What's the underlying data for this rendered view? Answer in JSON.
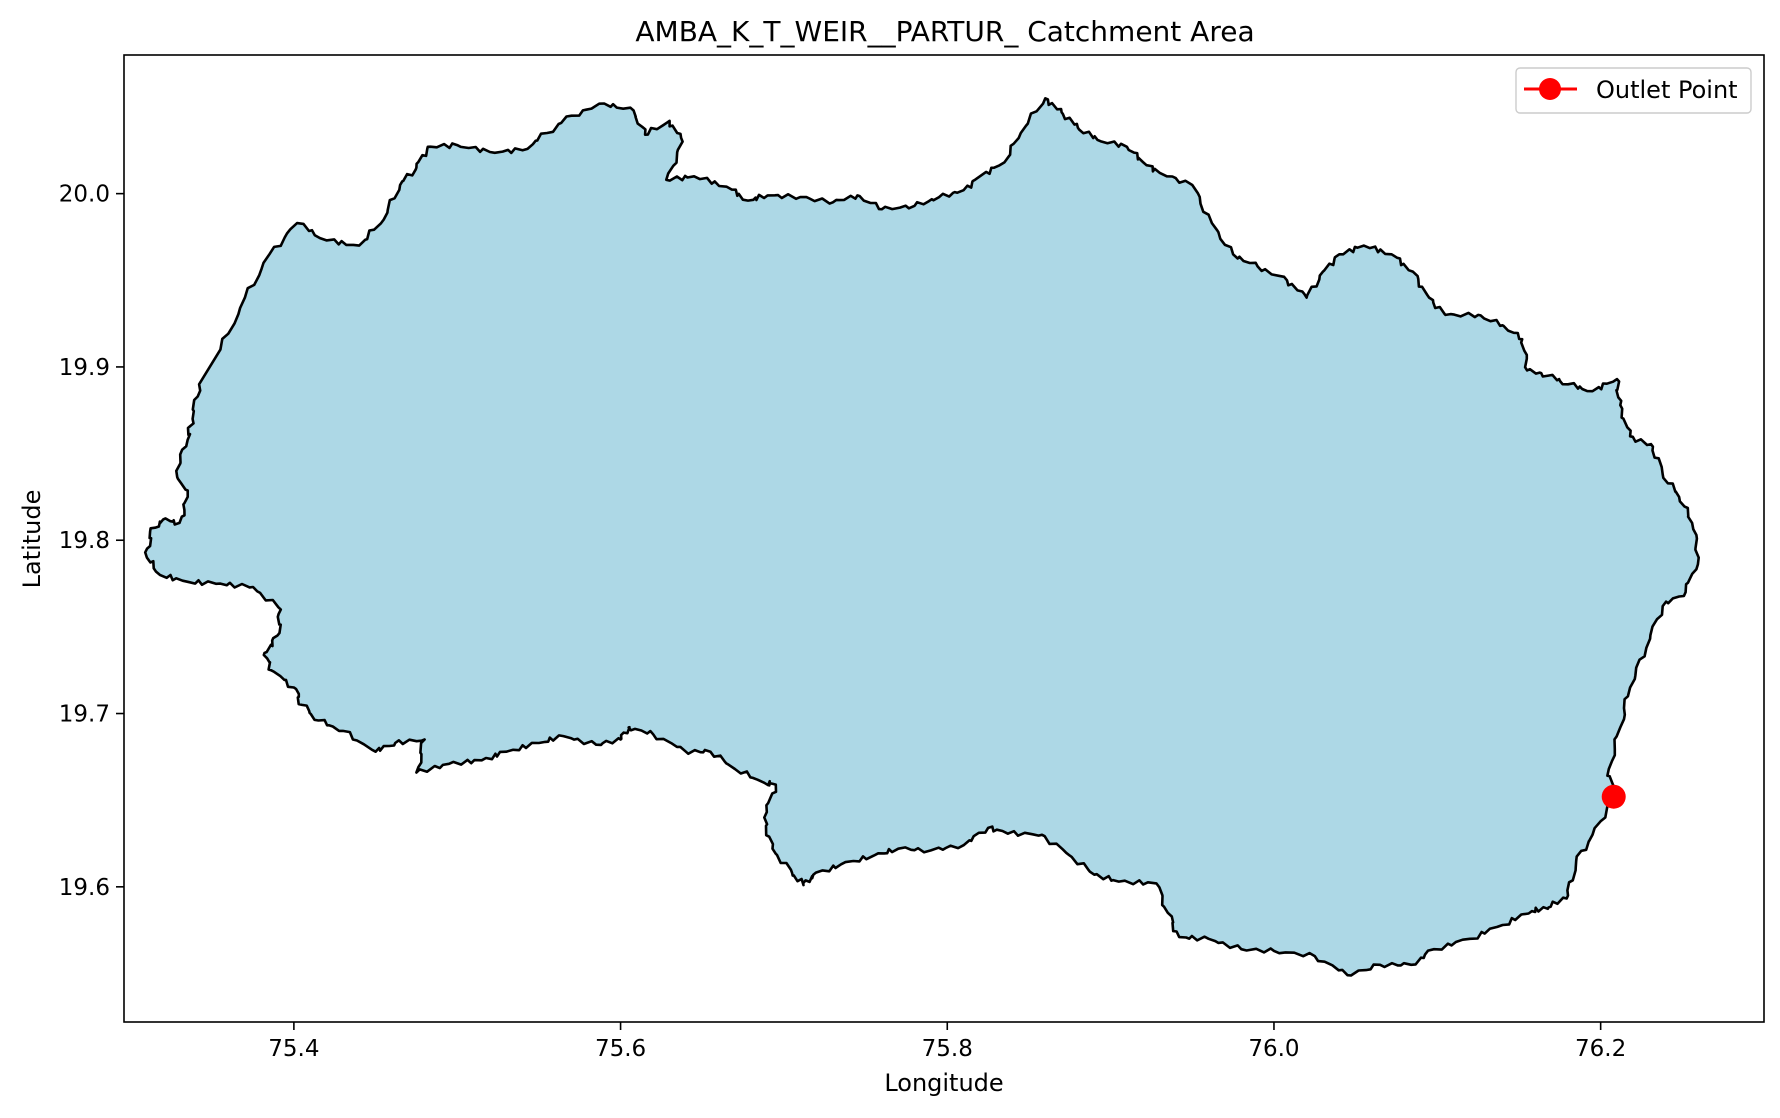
{
  "chart_data": {
    "type": "map",
    "title": "AMBA_K_T_WEIR__PARTUR_ Catchment Area",
    "xlabel": "Longitude",
    "ylabel": "Latitude",
    "xlim": [
      75.296,
      76.3
    ],
    "ylim": [
      19.522,
      20.08
    ],
    "x_ticks": [
      75.4,
      75.6,
      75.8,
      76.0,
      76.2
    ],
    "x_tick_labels": [
      "75.4",
      "75.6",
      "75.8",
      "76.0",
      "76.2"
    ],
    "y_ticks": [
      19.6,
      19.7,
      19.8,
      19.9,
      20.0
    ],
    "y_tick_labels": [
      "19.6",
      "19.7",
      "19.8",
      "19.9",
      "20.0"
    ],
    "grid": false,
    "legend": {
      "position": "top-right",
      "entries": [
        "Outlet Point"
      ]
    },
    "fill_color": "#add8e6",
    "edge_color": "#000000",
    "outlet_color": "#ff0000",
    "outlet_point": {
      "name": "Outlet Point",
      "lon": 76.208,
      "lat": 19.652
    },
    "catchment_boundary": [
      [
        75.355,
        19.91
      ],
      [
        75.37,
        19.94
      ],
      [
        75.385,
        19.965
      ],
      [
        75.402,
        19.983
      ],
      [
        75.42,
        19.973
      ],
      [
        75.44,
        19.97
      ],
      [
        75.455,
        19.985
      ],
      [
        75.465,
        20.005
      ],
      [
        75.475,
        20.015
      ],
      [
        75.482,
        20.027
      ],
      [
        75.5,
        20.028
      ],
      [
        75.52,
        20.024
      ],
      [
        75.54,
        20.025
      ],
      [
        75.555,
        20.035
      ],
      [
        75.57,
        20.045
      ],
      [
        75.59,
        20.052
      ],
      [
        75.608,
        20.048
      ],
      [
        75.615,
        20.034
      ],
      [
        75.63,
        20.042
      ],
      [
        75.638,
        20.03
      ],
      [
        75.628,
        20.008
      ],
      [
        75.645,
        20.01
      ],
      [
        75.665,
        20.004
      ],
      [
        75.678,
        19.996
      ],
      [
        75.69,
        19.999
      ],
      [
        75.71,
        19.998
      ],
      [
        75.73,
        19.995
      ],
      [
        75.745,
        19.999
      ],
      [
        75.76,
        19.991
      ],
      [
        75.78,
        19.993
      ],
      [
        75.795,
        19.998
      ],
      [
        75.81,
        20.002
      ],
      [
        75.82,
        20.01
      ],
      [
        75.835,
        20.018
      ],
      [
        75.845,
        20.035
      ],
      [
        75.86,
        20.055
      ],
      [
        75.87,
        20.047
      ],
      [
        75.88,
        20.038
      ],
      [
        75.892,
        20.031
      ],
      [
        75.91,
        20.027
      ],
      [
        75.92,
        20.018
      ],
      [
        75.93,
        20.012
      ],
      [
        75.95,
        20.005
      ],
      [
        75.962,
        19.983
      ],
      [
        75.975,
        19.965
      ],
      [
        75.99,
        19.958
      ],
      [
        76.008,
        19.95
      ],
      [
        76.02,
        19.94
      ],
      [
        76.03,
        19.955
      ],
      [
        76.04,
        19.965
      ],
      [
        76.055,
        19.97
      ],
      [
        76.072,
        19.965
      ],
      [
        76.085,
        19.955
      ],
      [
        76.095,
        19.94
      ],
      [
        76.105,
        19.93
      ],
      [
        76.125,
        19.93
      ],
      [
        76.14,
        19.924
      ],
      [
        76.152,
        19.916
      ],
      [
        76.155,
        19.898
      ],
      [
        76.168,
        19.895
      ],
      [
        76.18,
        19.89
      ],
      [
        76.195,
        19.886
      ],
      [
        76.21,
        19.893
      ],
      [
        76.212,
        19.878
      ],
      [
        76.218,
        19.86
      ],
      [
        76.232,
        19.854
      ],
      [
        76.238,
        19.838
      ],
      [
        76.248,
        19.825
      ],
      [
        76.256,
        19.81
      ],
      [
        76.26,
        19.79
      ],
      [
        76.252,
        19.77
      ],
      [
        76.238,
        19.762
      ],
      [
        76.228,
        19.738
      ],
      [
        76.218,
        19.715
      ],
      [
        76.212,
        19.692
      ],
      [
        76.205,
        19.668
      ],
      [
        76.208,
        19.652
      ],
      [
        76.195,
        19.63
      ],
      [
        76.185,
        19.615
      ],
      [
        76.18,
        19.595
      ],
      [
        76.168,
        19.588
      ],
      [
        76.158,
        19.586
      ],
      [
        76.14,
        19.578
      ],
      [
        76.12,
        19.57
      ],
      [
        76.098,
        19.564
      ],
      [
        76.084,
        19.555
      ],
      [
        76.065,
        19.555
      ],
      [
        76.045,
        19.549
      ],
      [
        76.025,
        19.56
      ],
      [
        76.0,
        19.563
      ],
      [
        75.98,
        19.564
      ],
      [
        75.96,
        19.57
      ],
      [
        75.942,
        19.571
      ],
      [
        75.935,
        19.585
      ],
      [
        75.928,
        19.602
      ],
      [
        75.905,
        19.603
      ],
      [
        75.89,
        19.607
      ],
      [
        75.875,
        19.618
      ],
      [
        75.858,
        19.63
      ],
      [
        75.838,
        19.631
      ],
      [
        75.825,
        19.634
      ],
      [
        75.81,
        19.624
      ],
      [
        75.79,
        19.621
      ],
      [
        75.77,
        19.622
      ],
      [
        75.755,
        19.618
      ],
      [
        75.735,
        19.613
      ],
      [
        75.718,
        19.607
      ],
      [
        75.712,
        19.601
      ],
      [
        75.705,
        19.608
      ],
      [
        75.693,
        19.622
      ],
      [
        75.688,
        19.64
      ],
      [
        75.695,
        19.659
      ],
      [
        75.688,
        19.66
      ],
      [
        75.67,
        19.668
      ],
      [
        75.655,
        19.678
      ],
      [
        75.64,
        19.678
      ],
      [
        75.62,
        19.688
      ],
      [
        75.605,
        19.692
      ],
      [
        75.6,
        19.685
      ],
      [
        75.585,
        19.682
      ],
      [
        75.565,
        19.687
      ],
      [
        75.55,
        19.683
      ],
      [
        75.53,
        19.678
      ],
      [
        75.515,
        19.673
      ],
      [
        75.495,
        19.671
      ],
      [
        75.475,
        19.666
      ],
      [
        75.48,
        19.685
      ],
      [
        75.462,
        19.683
      ],
      [
        75.45,
        19.678
      ],
      [
        75.43,
        19.69
      ],
      [
        75.415,
        19.696
      ],
      [
        75.405,
        19.705
      ],
      [
        75.4,
        19.715
      ],
      [
        75.386,
        19.725
      ],
      [
        75.382,
        19.735
      ],
      [
        75.39,
        19.745
      ],
      [
        75.392,
        19.76
      ],
      [
        75.375,
        19.773
      ],
      [
        75.355,
        19.775
      ],
      [
        75.335,
        19.776
      ],
      [
        75.318,
        19.78
      ],
      [
        75.31,
        19.79
      ],
      [
        75.312,
        19.805
      ],
      [
        75.32,
        19.812
      ],
      [
        75.33,
        19.81
      ],
      [
        75.335,
        19.825
      ],
      [
        75.328,
        19.84
      ],
      [
        75.335,
        19.858
      ],
      [
        75.338,
        19.87
      ],
      [
        75.342,
        19.89
      ]
    ]
  }
}
